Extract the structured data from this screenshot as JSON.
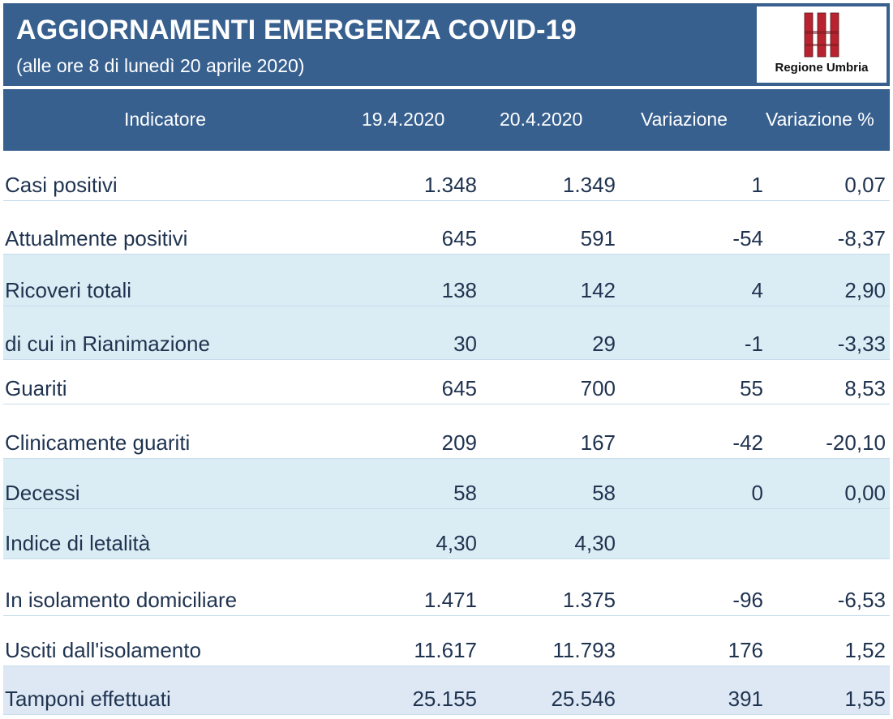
{
  "header": {
    "title": "AGGIORNAMENTI EMERGENZA COVID-19",
    "subtitle": "(alle ore 8 di lunedì 20 aprile 2020)",
    "logo_text": "Regione Umbria",
    "logo_icon": "regione-umbria-emblem",
    "bg_color": "#37608f"
  },
  "columns": {
    "indicator": "Indicatore",
    "date1": "19.4.2020",
    "date2": "20.4.2020",
    "variation": "Variazione",
    "variation_pct": "Variazione %"
  },
  "rows": [
    {
      "indicator": "Casi positivi",
      "d1": "1.348",
      "d2": "1.349",
      "var": "1",
      "varp": "0,07"
    },
    {
      "indicator": "Attualmente positivi",
      "d1": "645",
      "d2": "591",
      "var": "-54",
      "varp": "-8,37"
    },
    {
      "indicator": "Ricoveri totali",
      "d1": "138",
      "d2": "142",
      "var": "4",
      "varp": "2,90"
    },
    {
      "indicator": "di cui in Rianimazione",
      "d1": "30",
      "d2": "29",
      "var": "-1",
      "varp": "-3,33"
    },
    {
      "indicator": "Guariti",
      "d1": "645",
      "d2": "700",
      "var": "55",
      "varp": "8,53"
    },
    {
      "indicator": "Clinicamente guariti",
      "d1": "209",
      "d2": "167",
      "var": "-42",
      "varp": "-20,10"
    },
    {
      "indicator": "Decessi",
      "d1": "58",
      "d2": "58",
      "var": "0",
      "varp": "0,00"
    },
    {
      "indicator": "Indice di letalità",
      "d1": "4,30",
      "d2": "4,30",
      "var": "",
      "varp": ""
    },
    {
      "indicator": "In isolamento domiciliare",
      "d1": "1.471",
      "d2": "1.375",
      "var": "-96",
      "varp": "-6,53"
    },
    {
      "indicator": "Usciti dall'isolamento",
      "d1": "11.617",
      "d2": "11.793",
      "var": "176",
      "varp": "1,52"
    },
    {
      "indicator": "Tamponi effettuati",
      "d1": "25.155",
      "d2": "25.546",
      "var": "391",
      "varp": "1,55"
    }
  ]
}
